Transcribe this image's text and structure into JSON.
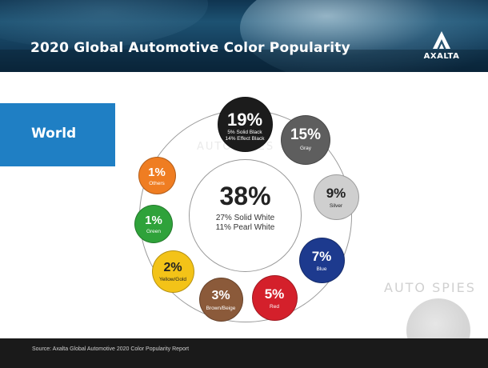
{
  "header": {
    "title": "2020 Global Automotive Color Popularity",
    "logo_text": "AXALTA"
  },
  "region": {
    "label": "World"
  },
  "watermark": {
    "text": "AUTO SPIES"
  },
  "footer": {
    "source": "Source: Axalta Global Automotive 2020 Color Popularity Report"
  },
  "chart_data": {
    "type": "bubble",
    "title": "2020 Global Automotive Color Popularity",
    "region": "World",
    "center": {
      "value": 38,
      "pct_text": "38%",
      "lines": [
        "27% Solid White",
        "11% Pearl White"
      ],
      "name": "White"
    },
    "items": [
      {
        "name": "Black",
        "value": 19,
        "pct_text": "19%",
        "lines": [
          "5% Solid Black",
          "14% Effect Black"
        ],
        "color": "#1c1c1c",
        "text_color": "#ffffff"
      },
      {
        "name": "Gray",
        "value": 15,
        "pct_text": "15%",
        "lines": [
          "Gray"
        ],
        "color": "#5e5e5e",
        "text_color": "#ffffff"
      },
      {
        "name": "Silver",
        "value": 9,
        "pct_text": "9%",
        "lines": [
          "Silver"
        ],
        "color": "#cfcfcf",
        "text_color": "#222222"
      },
      {
        "name": "Blue",
        "value": 7,
        "pct_text": "7%",
        "lines": [
          "Blue"
        ],
        "color": "#1d3a8e",
        "text_color": "#ffffff"
      },
      {
        "name": "Red",
        "value": 5,
        "pct_text": "5%",
        "lines": [
          "Red"
        ],
        "color": "#d4202b",
        "text_color": "#ffffff"
      },
      {
        "name": "Brown/Beige",
        "value": 3,
        "pct_text": "3%",
        "lines": [
          "Brown/Beige"
        ],
        "color": "#8b5a3a",
        "text_color": "#ffffff"
      },
      {
        "name": "Yellow/Gold",
        "value": 2,
        "pct_text": "2%",
        "lines": [
          "Yellow/Gold"
        ],
        "color": "#f3c318",
        "text_color": "#222222"
      },
      {
        "name": "Green",
        "value": 1,
        "pct_text": "1%",
        "lines": [
          "Green"
        ],
        "color": "#2fa23a",
        "text_color": "#ffffff"
      },
      {
        "name": "Others",
        "value": 1,
        "pct_text": "1%",
        "lines": [
          "Others"
        ],
        "color": "#ef7d22",
        "text_color": "#ffffff"
      }
    ]
  }
}
